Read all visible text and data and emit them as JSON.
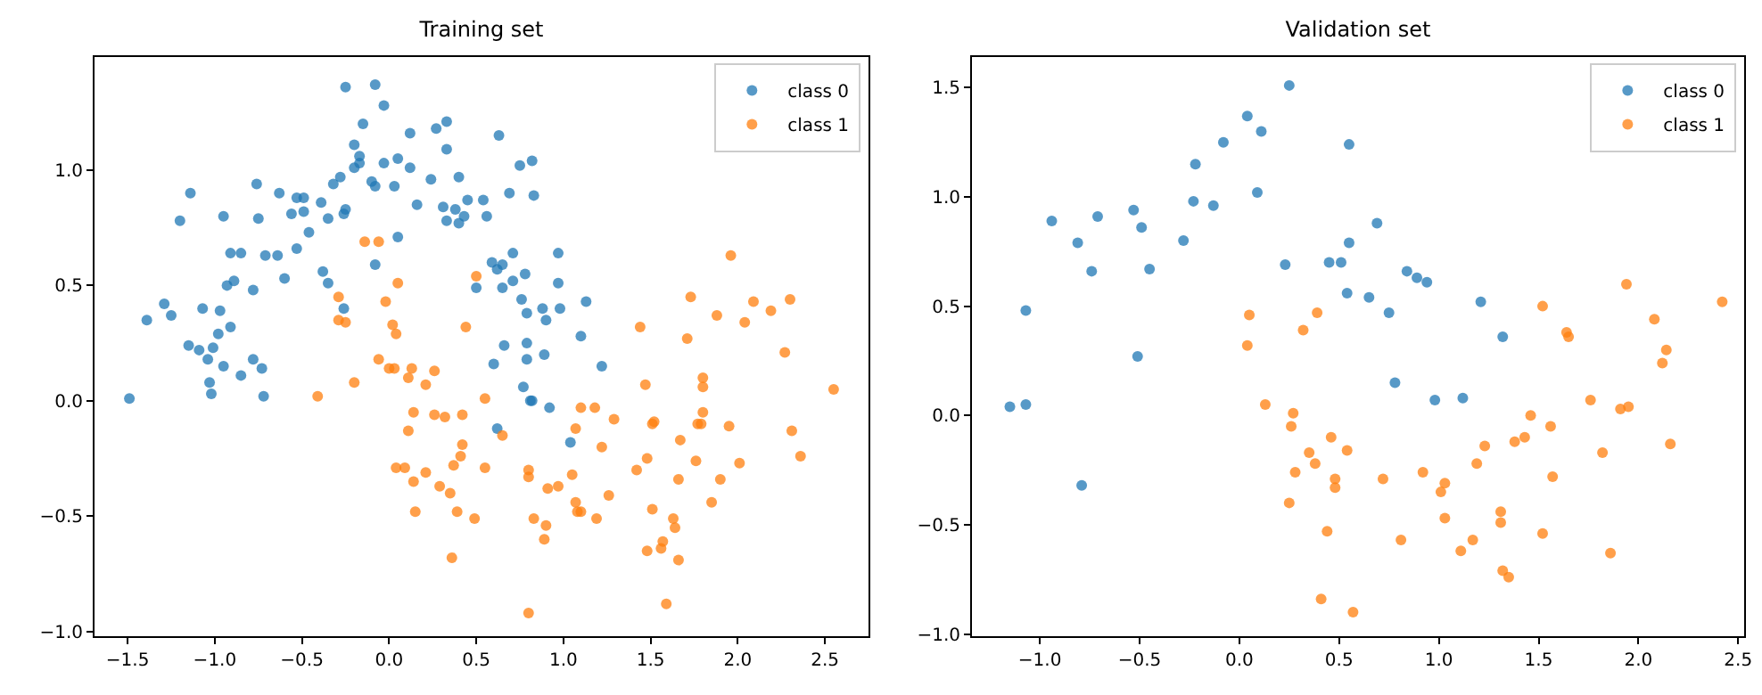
{
  "chart_data": [
    {
      "type": "scatter",
      "title": "Training set",
      "legend": "top right",
      "marker": "circle",
      "grid": false,
      "xlim": [
        -1.69,
        2.75
      ],
      "ylim": [
        -1.02,
        1.49
      ],
      "xticks": [
        {
          "value": -1.5,
          "label": "−1.5"
        },
        {
          "value": -1.0,
          "label": "−1.0"
        },
        {
          "value": -0.5,
          "label": "−0.5"
        },
        {
          "value": 0,
          "label": "0.0"
        },
        {
          "value": 0.5,
          "label": "0.5"
        },
        {
          "value": 1.0,
          "label": "1.0"
        },
        {
          "value": 1.5,
          "label": "1.5"
        },
        {
          "value": 2.0,
          "label": "2.0"
        },
        {
          "value": 2.5,
          "label": "2.5"
        }
      ],
      "yticks": [
        {
          "value": -1.0,
          "label": "−1.0"
        },
        {
          "value": -0.5,
          "label": "−0.5"
        },
        {
          "value": 0,
          "label": "0.0"
        },
        {
          "value": 0.5,
          "label": "0.5"
        },
        {
          "value": 1.0,
          "label": "1.0"
        }
      ],
      "series": [
        {
          "name": "class 0",
          "color": "#1f77b4",
          "x": [
            -0.25,
            -0.08,
            -0.03,
            -0.15,
            -0.2,
            -0.17,
            -0.17,
            -0.2,
            0.12,
            0.27,
            0.33,
            0.33,
            0.63,
            0.05,
            0.12,
            -0.03,
            0.75,
            0.82,
            -0.1,
            -0.08,
            0.03,
            0.24,
            0.4,
            0.69,
            0.83,
            -0.32,
            -0.28,
            0.16,
            0.31,
            0.38,
            0.45,
            0.54,
            0.56,
            0.43,
            0.33,
            0.4,
            -0.25,
            -0.26,
            -0.39,
            -0.35,
            -0.46,
            -0.53,
            -0.49,
            -0.56,
            -0.49,
            -0.63,
            -0.76,
            -0.75,
            -0.95,
            -1.14,
            -1.2,
            0.05,
            -0.53,
            -0.71,
            -0.64,
            -0.91,
            -0.85,
            -0.6,
            -0.78,
            -0.89,
            -0.93,
            -0.38,
            -0.35,
            -0.08,
            -0.26,
            -1.29,
            -1.25,
            -1.39,
            -1.07,
            -0.97,
            -0.91,
            -0.98,
            0.59,
            0.62,
            0.65,
            0.71,
            0.78,
            0.71,
            0.65,
            0.5,
            0.97,
            0.97,
            0.76,
            0.79,
            0.88,
            0.9,
            0.98,
            1.13,
            1.1,
            0.79,
            0.66,
            -1.15,
            -1.09,
            -1.01,
            -1.04,
            -0.95,
            -0.85,
            -0.78,
            -0.73,
            -1.03,
            -1.02,
            -0.72,
            -1.49,
            0.6,
            0.79,
            0.89,
            1.22,
            0.77,
            0.81,
            0.82,
            0.92,
            0.62,
            1.04
          ],
          "values": [
            1.36,
            1.37,
            1.28,
            1.2,
            1.11,
            1.06,
            1.03,
            1.01,
            1.16,
            1.18,
            1.21,
            1.09,
            1.15,
            1.05,
            1.01,
            1.03,
            1.02,
            1.04,
            0.95,
            0.93,
            0.93,
            0.96,
            0.97,
            0.9,
            0.89,
            0.94,
            0.97,
            0.85,
            0.84,
            0.83,
            0.87,
            0.87,
            0.8,
            0.8,
            0.78,
            0.77,
            0.83,
            0.81,
            0.86,
            0.79,
            0.73,
            0.88,
            0.88,
            0.81,
            0.82,
            0.9,
            0.94,
            0.79,
            0.8,
            0.9,
            0.78,
            0.71,
            0.66,
            0.63,
            0.63,
            0.64,
            0.64,
            0.53,
            0.48,
            0.52,
            0.5,
            0.56,
            0.51,
            0.59,
            0.4,
            0.42,
            0.37,
            0.35,
            0.4,
            0.39,
            0.32,
            0.29,
            0.6,
            0.57,
            0.59,
            0.64,
            0.55,
            0.52,
            0.49,
            0.49,
            0.64,
            0.51,
            0.44,
            0.38,
            0.4,
            0.35,
            0.4,
            0.43,
            0.28,
            0.25,
            0.24,
            0.24,
            0.22,
            0.23,
            0.18,
            0.15,
            0.11,
            0.18,
            0.14,
            0.08,
            0.03,
            0.02,
            0.01,
            0.16,
            0.18,
            0.2,
            0.15,
            0.06,
            0.0,
            0.0,
            -0.03,
            -0.12,
            -0.18
          ]
        },
        {
          "name": "class 1",
          "color": "#ff7f0e",
          "x": [
            -0.14,
            -0.06,
            0.5,
            0.05,
            -0.02,
            -0.29,
            -0.29,
            -0.25,
            0.02,
            0.04,
            0.44,
            1.96,
            1.44,
            1.73,
            1.88,
            2.09,
            2.19,
            2.3,
            2.04,
            1.71,
            2.27,
            -0.06,
            0.0,
            0.03,
            0.13,
            0.26,
            0.11,
            0.21,
            -0.2,
            -0.41,
            0.55,
            0.14,
            0.26,
            0.32,
            0.42,
            0.11,
            0.65,
            0.42,
            0.41,
            0.37,
            0.04,
            0.09,
            0.55,
            0.21,
            0.8,
            0.8,
            0.14,
            0.29,
            0.35,
            0.15,
            0.39,
            0.49,
            0.36,
            0.83,
            0.9,
            0.89,
            0.91,
            0.97,
            1.05,
            1.07,
            1.1,
            1.18,
            1.29,
            1.22,
            1.26,
            1.07,
            1.08,
            1.1,
            1.19,
            0.8,
            1.47,
            1.8,
            1.8,
            1.8,
            1.51,
            1.52,
            1.77,
            1.79,
            1.95,
            2.31,
            1.67,
            2.36,
            1.48,
            1.42,
            1.76,
            2.01,
            1.66,
            1.9,
            1.85,
            1.51,
            1.63,
            1.64,
            1.57,
            1.56,
            1.48,
            1.66,
            1.59,
            2.55
          ],
          "values": [
            0.69,
            0.69,
            0.54,
            0.51,
            0.43,
            0.45,
            0.35,
            0.34,
            0.33,
            0.29,
            0.32,
            0.63,
            0.32,
            0.45,
            0.37,
            0.43,
            0.39,
            0.44,
            0.34,
            0.27,
            0.21,
            0.18,
            0.14,
            0.14,
            0.14,
            0.13,
            0.1,
            0.07,
            0.08,
            0.02,
            0.01,
            -0.05,
            -0.06,
            -0.07,
            -0.06,
            -0.13,
            -0.15,
            -0.19,
            -0.24,
            -0.28,
            -0.29,
            -0.29,
            -0.29,
            -0.31,
            -0.3,
            -0.33,
            -0.35,
            -0.37,
            -0.4,
            -0.48,
            -0.48,
            -0.51,
            -0.68,
            -0.51,
            -0.54,
            -0.6,
            -0.38,
            -0.37,
            -0.32,
            -0.12,
            -0.03,
            -0.03,
            -0.08,
            -0.2,
            -0.41,
            -0.44,
            -0.48,
            -0.48,
            -0.51,
            -0.92,
            0.07,
            0.06,
            0.1,
            -0.05,
            -0.1,
            -0.09,
            -0.1,
            -0.1,
            -0.11,
            -0.13,
            -0.17,
            -0.24,
            -0.25,
            -0.3,
            -0.26,
            -0.27,
            -0.34,
            -0.34,
            -0.44,
            -0.47,
            -0.51,
            -0.55,
            -0.61,
            -0.64,
            -0.65,
            -0.69,
            -0.88,
            0.05
          ]
        }
      ]
    },
    {
      "type": "scatter",
      "title": "Validation set",
      "legend": "top right",
      "marker": "circle",
      "grid": false,
      "xlim": [
        -1.34,
        2.53
      ],
      "ylim": [
        -1.01,
        1.64
      ],
      "xticks": [
        {
          "value": -1.0,
          "label": "−1.0"
        },
        {
          "value": -0.5,
          "label": "−0.5"
        },
        {
          "value": 0,
          "label": "0.0"
        },
        {
          "value": 0.5,
          "label": "0.5"
        },
        {
          "value": 1.0,
          "label": "1.0"
        },
        {
          "value": 1.5,
          "label": "1.5"
        },
        {
          "value": 2.0,
          "label": "2.0"
        },
        {
          "value": 2.5,
          "label": "2.5"
        }
      ],
      "yticks": [
        {
          "value": -1.0,
          "label": "−1.0"
        },
        {
          "value": -0.5,
          "label": "−0.5"
        },
        {
          "value": 0,
          "label": "0.0"
        },
        {
          "value": 0.5,
          "label": "0.5"
        },
        {
          "value": 1.0,
          "label": "1.0"
        },
        {
          "value": 1.5,
          "label": "1.5"
        }
      ],
      "series": [
        {
          "name": "class 0",
          "color": "#1f77b4",
          "x": [
            0.25,
            0.04,
            0.11,
            0.55,
            -0.08,
            -0.22,
            0.09,
            -0.23,
            -0.13,
            -0.53,
            -0.49,
            -0.71,
            -0.94,
            -0.81,
            -0.74,
            -0.45,
            -0.28,
            0.23,
            0.45,
            0.51,
            0.55,
            0.69,
            0.54,
            0.65,
            0.75,
            0.84,
            0.89,
            0.94,
            1.21,
            1.32,
            -1.07,
            -0.51,
            -1.15,
            -1.07,
            -0.79,
            0.78,
            0.98,
            1.12
          ],
          "values": [
            1.51,
            1.37,
            1.3,
            1.24,
            1.25,
            1.15,
            1.02,
            0.98,
            0.96,
            0.94,
            0.86,
            0.91,
            0.89,
            0.79,
            0.66,
            0.67,
            0.8,
            0.69,
            0.7,
            0.7,
            0.79,
            0.88,
            0.56,
            0.54,
            0.47,
            0.66,
            0.63,
            0.61,
            0.52,
            0.36,
            0.48,
            0.27,
            0.04,
            0.05,
            -0.32,
            0.15,
            0.07,
            0.08
          ]
        },
        {
          "name": "class 1",
          "color": "#ff7f0e",
          "x": [
            0.05,
            0.04,
            0.39,
            0.32,
            1.52,
            1.94,
            2.08,
            1.64,
            1.65,
            2.42,
            2.14,
            2.12,
            0.13,
            0.27,
            0.26,
            0.46,
            0.54,
            0.35,
            0.38,
            0.28,
            0.48,
            0.48,
            0.25,
            0.44,
            0.41,
            0.57,
            0.72,
            0.81,
            0.92,
            1.03,
            1.01,
            1.03,
            1.11,
            1.17,
            1.19,
            1.23,
            1.31,
            1.31,
            1.32,
            1.35,
            1.38,
            1.43,
            1.46,
            1.52,
            1.56,
            1.57,
            1.76,
            1.82,
            1.86,
            1.91,
            1.95,
            2.16
          ],
          "values": [
            0.46,
            0.32,
            0.47,
            0.39,
            0.5,
            0.6,
            0.44,
            0.38,
            0.36,
            0.52,
            0.3,
            0.24,
            0.05,
            0.01,
            -0.05,
            -0.1,
            -0.16,
            -0.17,
            -0.22,
            -0.26,
            -0.29,
            -0.33,
            -0.4,
            -0.53,
            -0.84,
            -0.9,
            -0.29,
            -0.57,
            -0.26,
            -0.31,
            -0.35,
            -0.47,
            -0.62,
            -0.57,
            -0.22,
            -0.14,
            -0.44,
            -0.49,
            -0.71,
            -0.74,
            -0.12,
            -0.1,
            0.0,
            -0.54,
            -0.05,
            -0.28,
            0.07,
            -0.17,
            -0.63,
            0.03,
            0.04,
            -0.13
          ]
        }
      ]
    }
  ]
}
